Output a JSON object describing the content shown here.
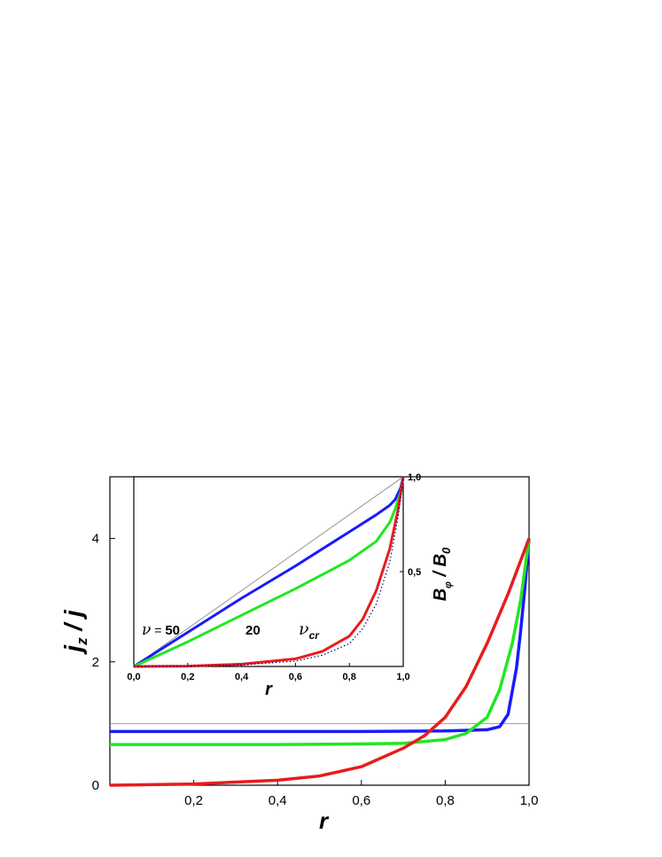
{
  "chart_data": [
    {
      "type": "line",
      "xlabel": "r",
      "ylabel": "j_z / j",
      "xlim": [
        0,
        1
      ],
      "ylim": [
        0,
        5
      ],
      "x_ticks": [
        "0,2",
        "0,4",
        "0,6",
        "0,8",
        "1,0"
      ],
      "y_ticks": [
        "0",
        "2",
        "4"
      ],
      "reference_line": {
        "y": 1,
        "color": "#808080"
      },
      "series": [
        {
          "color": "#1a1aff",
          "x": [
            0,
            0.2,
            0.4,
            0.6,
            0.8,
            0.9,
            0.93,
            0.95,
            0.97,
            0.98,
            0.99,
            1.0
          ],
          "y": [
            0.87,
            0.87,
            0.87,
            0.87,
            0.88,
            0.9,
            0.95,
            1.15,
            1.9,
            2.5,
            3.2,
            4.0
          ]
        },
        {
          "color": "#22e622",
          "x": [
            0,
            0.2,
            0.4,
            0.6,
            0.7,
            0.8,
            0.85,
            0.9,
            0.93,
            0.96,
            0.98,
            1.0
          ],
          "y": [
            0.66,
            0.66,
            0.66,
            0.67,
            0.68,
            0.74,
            0.84,
            1.1,
            1.55,
            2.3,
            3.0,
            4.0
          ]
        },
        {
          "color": "#e81c1c",
          "x": [
            0,
            0.2,
            0.4,
            0.5,
            0.6,
            0.7,
            0.75,
            0.8,
            0.85,
            0.9,
            0.95,
            1.0
          ],
          "y": [
            0.0,
            0.02,
            0.08,
            0.15,
            0.3,
            0.6,
            0.8,
            1.1,
            1.6,
            2.3,
            3.1,
            4.0
          ]
        }
      ]
    },
    {
      "type": "line",
      "xlabel": "r",
      "ylabel": "B_φ / B_0",
      "xlim": [
        0,
        1
      ],
      "ylim": [
        0,
        1
      ],
      "x_ticks": [
        "0,0",
        "0,2",
        "0,4",
        "0,6",
        "0,8",
        "1,0"
      ],
      "y_ticks": [
        "0,5",
        "1,0"
      ],
      "annotations": [
        "ν = 50",
        "20",
        "ν cr"
      ],
      "series": [
        {
          "color": "#808080",
          "style": "thin",
          "x": [
            0,
            1
          ],
          "y": [
            0,
            1
          ]
        },
        {
          "color": "#1a1aff",
          "x": [
            0,
            0.2,
            0.4,
            0.6,
            0.8,
            0.9,
            0.95,
            0.97,
            0.99,
            1.0
          ],
          "y": [
            0,
            0.18,
            0.36,
            0.53,
            0.71,
            0.8,
            0.85,
            0.88,
            0.94,
            1.0
          ]
        },
        {
          "color": "#22e622",
          "x": [
            0,
            0.2,
            0.4,
            0.6,
            0.8,
            0.9,
            0.95,
            0.97,
            0.99,
            1.0
          ],
          "y": [
            0,
            0.13,
            0.27,
            0.41,
            0.56,
            0.66,
            0.76,
            0.83,
            0.92,
            1.0
          ]
        },
        {
          "color": "#e81c1c",
          "x": [
            0,
            0.2,
            0.4,
            0.6,
            0.7,
            0.8,
            0.85,
            0.9,
            0.95,
            0.98,
            1.0
          ],
          "y": [
            0,
            0.002,
            0.012,
            0.04,
            0.08,
            0.16,
            0.25,
            0.4,
            0.62,
            0.82,
            1.0
          ]
        },
        {
          "color": "#000080",
          "style": "dotted",
          "x": [
            0,
            0.2,
            0.4,
            0.6,
            0.7,
            0.8,
            0.85,
            0.9,
            0.95,
            0.98,
            1.0
          ],
          "y": [
            0,
            0.001,
            0.008,
            0.028,
            0.06,
            0.12,
            0.2,
            0.33,
            0.55,
            0.78,
            1.0
          ]
        }
      ]
    }
  ]
}
